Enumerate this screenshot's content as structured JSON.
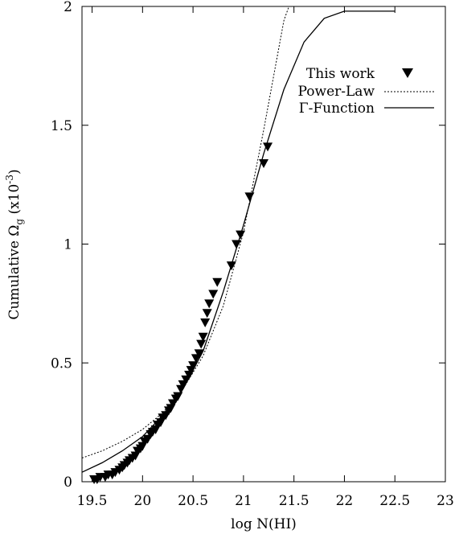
{
  "chart_data": {
    "type": "scatter",
    "xlabel": "log N(HI)",
    "ylabel": {
      "main": "Cumulative Ω",
      "sub": "g",
      "unit_open": " (x10",
      "unit_exp": "-3",
      "unit_close": ")"
    },
    "xlim": [
      19.4,
      23.0
    ],
    "ylim": [
      0,
      2
    ],
    "xticks": [
      {
        "value": 19.5,
        "label": "19.5"
      },
      {
        "value": 20.0,
        "label": "20"
      },
      {
        "value": 20.5,
        "label": "20.5"
      },
      {
        "value": 21.0,
        "label": "21"
      },
      {
        "value": 21.5,
        "label": "21.5"
      },
      {
        "value": 22.0,
        "label": "22"
      },
      {
        "value": 22.5,
        "label": "22.5"
      },
      {
        "value": 23.0,
        "label": "23"
      }
    ],
    "yticks": [
      {
        "value": 0,
        "label": "0"
      },
      {
        "value": 0.5,
        "label": "0.5"
      },
      {
        "value": 1.0,
        "label": "1"
      },
      {
        "value": 1.5,
        "label": "1.5"
      },
      {
        "value": 2.0,
        "label": "2"
      }
    ],
    "grid": false,
    "legend_position": "top-right",
    "series": [
      {
        "name": "This work",
        "kind": "points",
        "marker": "triangle-down",
        "x": [
          19.52,
          19.55,
          19.58,
          19.63,
          19.66,
          19.7,
          19.73,
          19.77,
          19.8,
          19.82,
          19.85,
          19.87,
          19.9,
          19.93,
          19.95,
          19.98,
          20.0,
          20.02,
          20.05,
          20.08,
          20.1,
          20.13,
          20.15,
          20.18,
          20.2,
          20.23,
          20.26,
          20.28,
          20.3,
          20.33,
          20.35,
          20.38,
          20.4,
          20.43,
          20.46,
          20.48,
          20.5,
          20.53,
          20.56,
          20.58,
          20.6,
          20.62,
          20.64,
          20.66,
          20.7,
          20.74,
          20.88,
          20.93,
          20.97,
          21.06,
          21.2,
          21.24
        ],
        "y": [
          0.01,
          0.01,
          0.02,
          0.02,
          0.03,
          0.03,
          0.04,
          0.05,
          0.06,
          0.07,
          0.08,
          0.09,
          0.1,
          0.11,
          0.13,
          0.14,
          0.15,
          0.17,
          0.18,
          0.2,
          0.21,
          0.22,
          0.24,
          0.25,
          0.27,
          0.28,
          0.3,
          0.31,
          0.33,
          0.35,
          0.36,
          0.39,
          0.41,
          0.43,
          0.45,
          0.47,
          0.49,
          0.52,
          0.54,
          0.58,
          0.61,
          0.67,
          0.71,
          0.75,
          0.79,
          0.84,
          0.91,
          1.0,
          1.04,
          1.2,
          1.34,
          1.41
        ]
      },
      {
        "name": "Power-Law",
        "kind": "line",
        "style": "dotted",
        "x": [
          19.4,
          19.6,
          19.8,
          20.0,
          20.2,
          20.4,
          20.6,
          20.8,
          21.0,
          21.2,
          21.4,
          21.45
        ],
        "y": [
          0.1,
          0.13,
          0.17,
          0.22,
          0.29,
          0.39,
          0.53,
          0.74,
          1.05,
          1.48,
          1.94,
          2.0
        ]
      },
      {
        "name": "Γ-Function",
        "kind": "line",
        "style": "solid",
        "x": [
          19.4,
          19.6,
          19.8,
          20.0,
          20.2,
          20.4,
          20.6,
          20.8,
          21.0,
          21.2,
          21.4,
          21.6,
          21.8,
          22.0,
          22.2,
          22.5
        ],
        "y": [
          0.04,
          0.08,
          0.13,
          0.19,
          0.28,
          0.39,
          0.55,
          0.8,
          1.08,
          1.38,
          1.65,
          1.85,
          1.95,
          1.98,
          1.98,
          1.98
        ]
      }
    ]
  }
}
